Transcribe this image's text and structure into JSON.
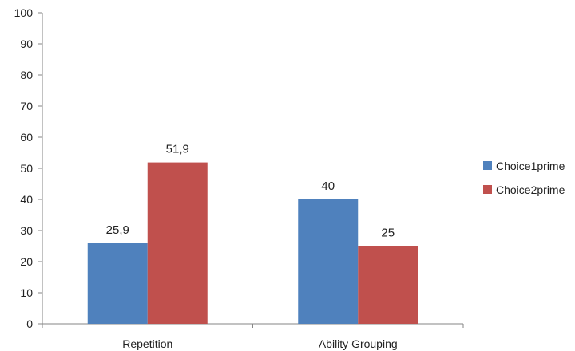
{
  "chart_data": {
    "type": "bar",
    "categories": [
      "Repetition",
      "Ability Grouping"
    ],
    "series": [
      {
        "name": "Choice1prime",
        "values": [
          25.9,
          40
        ],
        "labels": [
          "25,9",
          "40"
        ],
        "color": "#4F81BD"
      },
      {
        "name": "Choice2prime",
        "values": [
          51.9,
          25
        ],
        "labels": [
          "51,9",
          "25"
        ],
        "color": "#C0504D"
      }
    ],
    "yticks": [
      0,
      10,
      20,
      30,
      40,
      50,
      60,
      70,
      80,
      90,
      100
    ],
    "ylim": [
      0,
      100
    ],
    "grid": false,
    "legend_position": "right"
  }
}
